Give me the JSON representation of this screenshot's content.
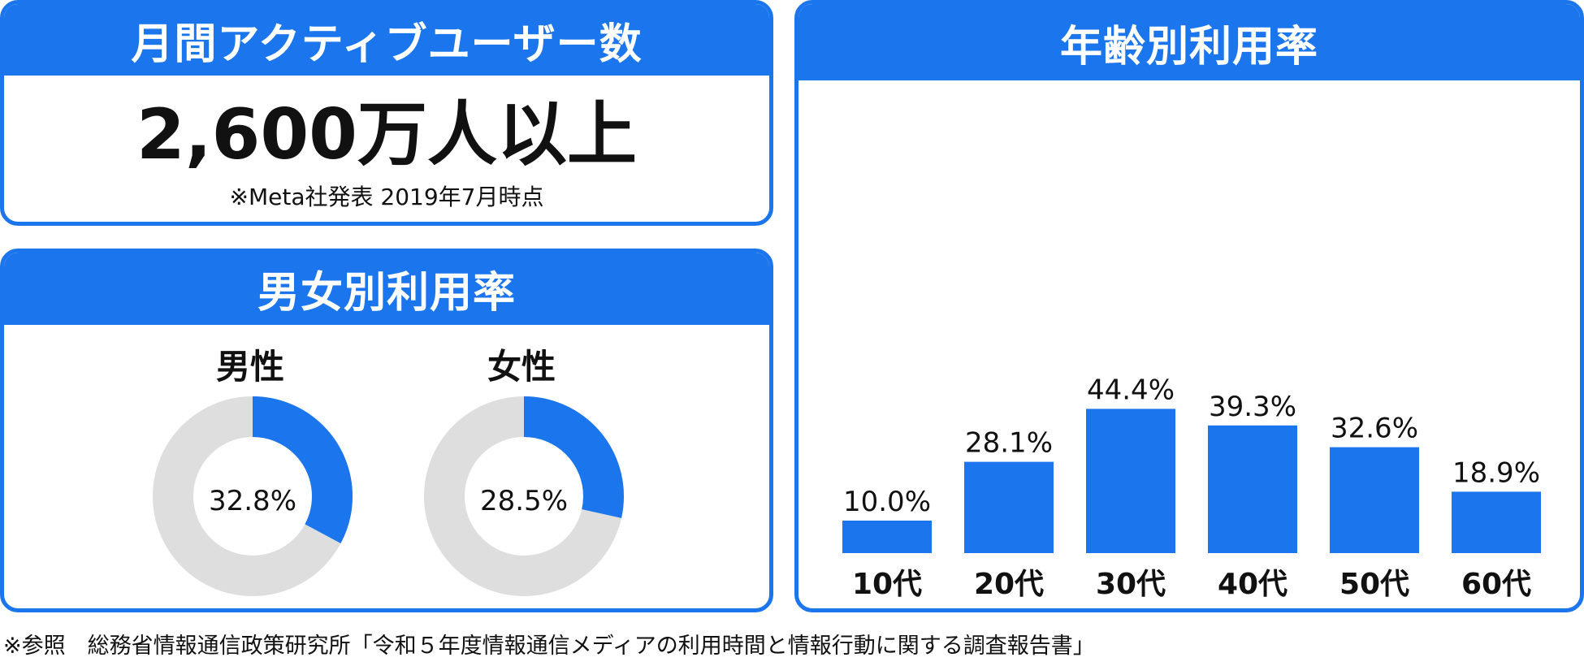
{
  "mau": {
    "title": "月間アクティブユーザー数",
    "value": "2,600万人以上",
    "note": "※Meta社発表 2019年7月時点"
  },
  "gender": {
    "title": "男女別利用率",
    "items": [
      {
        "label": "男性",
        "value_label": "32.8%",
        "value": 32.8
      },
      {
        "label": "女性",
        "value_label": "28.5%",
        "value": 28.5
      }
    ]
  },
  "age": {
    "title": "年齢別利用率"
  },
  "chart_data": {
    "type": "bar",
    "title": "年齢別利用率",
    "categories": [
      "10代",
      "20代",
      "30代",
      "40代",
      "50代",
      "60代"
    ],
    "values": [
      10.0,
      28.1,
      44.4,
      39.3,
      32.6,
      18.9
    ],
    "value_labels": [
      "10.0%",
      "28.1%",
      "44.4%",
      "39.3%",
      "32.6%",
      "18.9%"
    ],
    "ylim": [
      0,
      50
    ],
    "grid": false,
    "colors": {
      "bar": "#1b76ee"
    }
  },
  "colors": {
    "accent": "#1b76ee",
    "donut_track": "#dedede"
  },
  "footnote": "※参照　総務省情報通信政策研究所「令和５年度情報通信メディアの利用時間と情報行動に関する調査報告書」"
}
